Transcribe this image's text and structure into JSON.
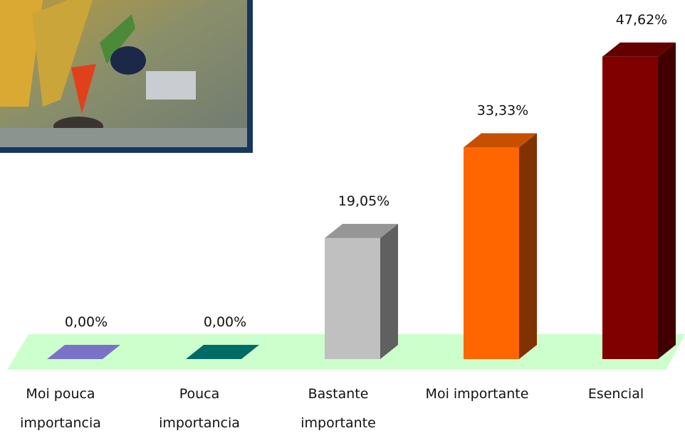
{
  "chart_data": {
    "type": "bar3d",
    "categories": [
      "Moi pouca importancia",
      "Pouca importancia",
      "Bastante importante",
      "Moi importante",
      "Esencial"
    ],
    "values": [
      0,
      0,
      19.05,
      33.33,
      47.62
    ],
    "value_labels": [
      "0,00%",
      "0,00%",
      "19,05%",
      "33,33%",
      "47,62%"
    ],
    "colors": [
      "#7a72c8",
      "#006a66",
      "#c0c0c0",
      "#ff6600",
      "#800000"
    ]
  }
}
